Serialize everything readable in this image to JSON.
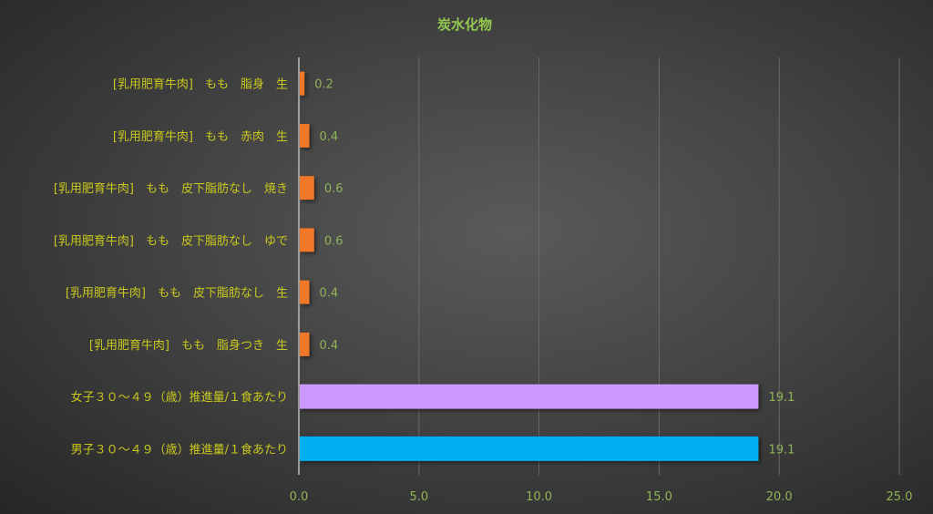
{
  "chart_data": {
    "type": "bar",
    "orientation": "horizontal",
    "title": "炭水化物",
    "categories": [
      "[乳用肥育牛肉]　もも　脂身　生",
      "[乳用肥育牛肉]　もも　赤肉　生",
      "[乳用肥育牛肉]　もも　皮下脂肪なし　焼き",
      "[乳用肥育牛肉]　もも　皮下脂肪なし　ゆで",
      "[乳用肥育牛肉]　もも　皮下脂肪なし　生",
      "[乳用肥育牛肉]　もも　脂身つき　生",
      "女子３０～４９（歳）推進量/１食あたり",
      "男子３０～４９（歳）推進量/１食あたり"
    ],
    "values": [
      0.2,
      0.4,
      0.6,
      0.6,
      0.4,
      0.4,
      19.1,
      19.1
    ],
    "value_labels": [
      "0.2",
      "0.4",
      "0.6",
      "0.6",
      "0.4",
      "0.4",
      "19.1",
      "19.1"
    ],
    "colors": [
      "#f07828",
      "#f07828",
      "#f07828",
      "#f07828",
      "#f07828",
      "#f07828",
      "#cc99ff",
      "#00b0f0"
    ],
    "xlim": [
      0,
      25
    ],
    "xticks": [
      "0.0",
      "5.0",
      "10.0",
      "15.0",
      "20.0",
      "25.0"
    ],
    "grid": true,
    "legend": "none"
  }
}
